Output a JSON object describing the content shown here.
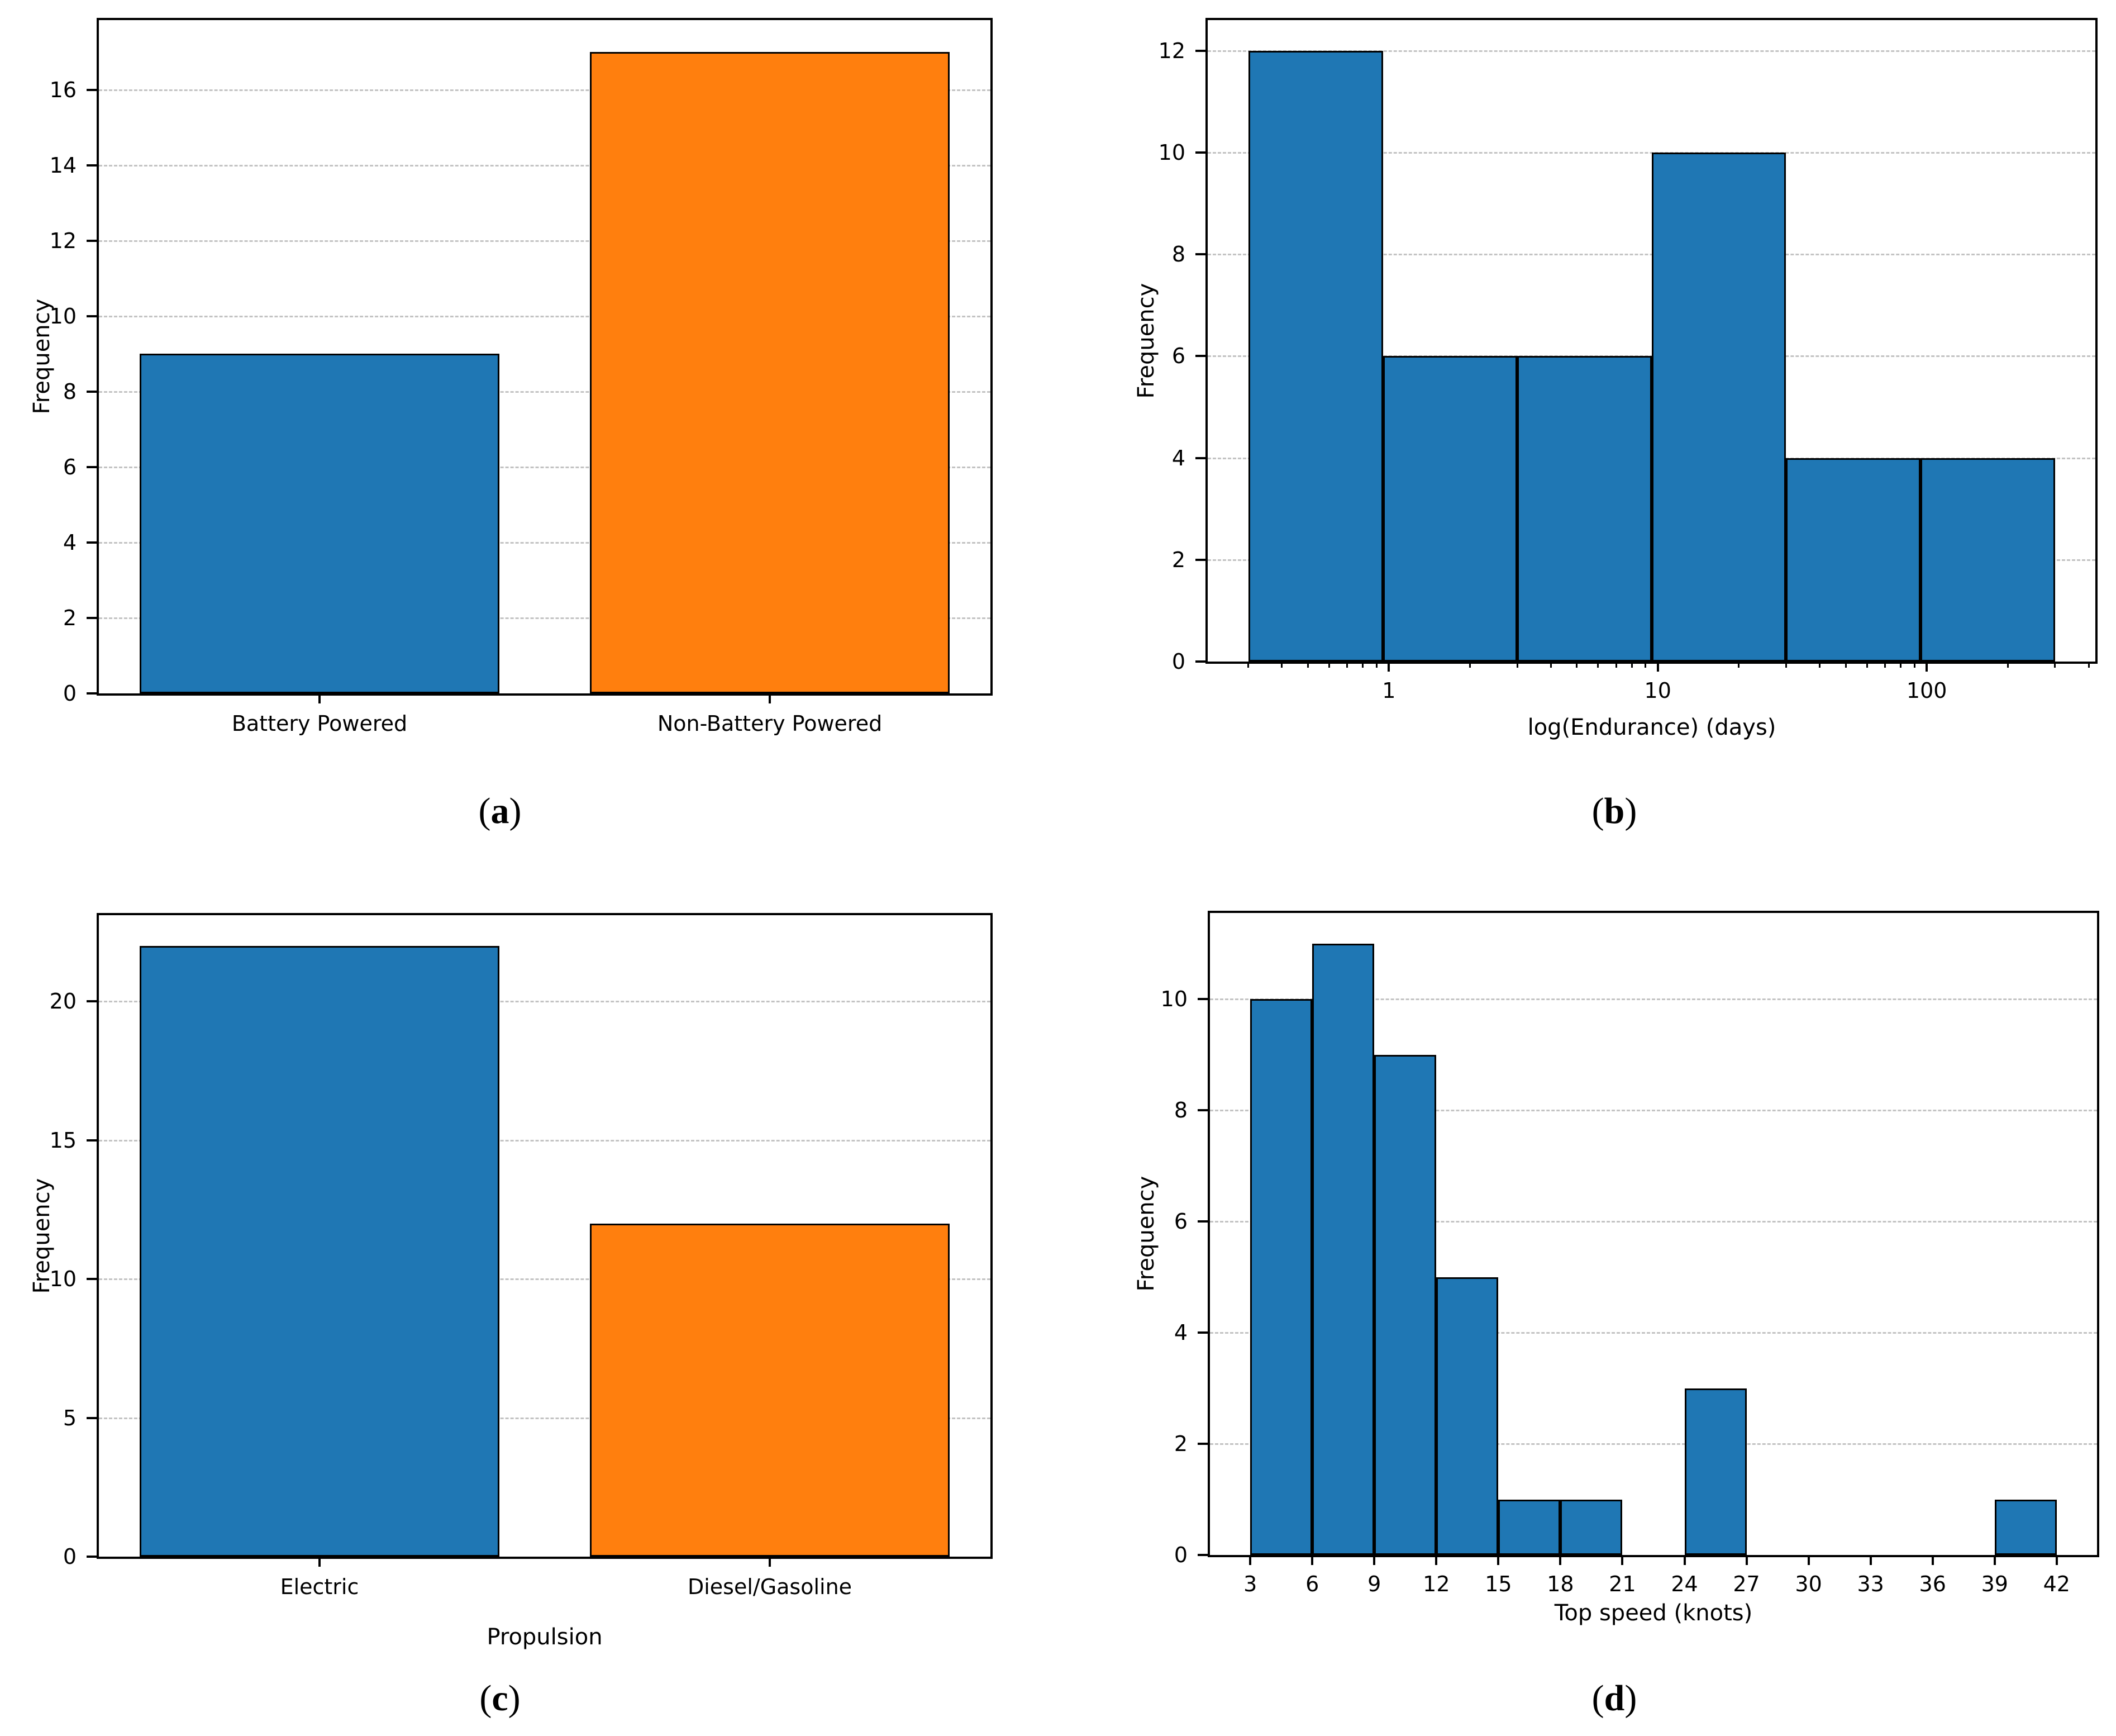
{
  "figure": {
    "background": "#ffffff",
    "grid_color": "#c3c3c3",
    "spine_color": "#000000",
    "bar_edge_color": "#000000",
    "accent_blue": "#1f77b4",
    "accent_orange": "#ff7f0e"
  },
  "chart_data": [
    {
      "id": "a",
      "type": "bar",
      "caption_open": "(",
      "caption_letter": "a",
      "caption_close": ")",
      "ylabel": "Frequency",
      "xlabel": "",
      "categories": [
        "Battery Powered",
        "Non-Battery Powered"
      ],
      "values": [
        9,
        17
      ],
      "bar_colors": [
        "#1f77b4",
        "#ff7f0e"
      ],
      "ylim": [
        0,
        17.85
      ],
      "yticks": [
        0,
        2,
        4,
        6,
        8,
        10,
        12,
        14,
        16
      ],
      "grid": "horizontal-dashed",
      "legend": "none"
    },
    {
      "id": "b",
      "type": "histogram-logx",
      "caption_open": "(",
      "caption_letter": "b",
      "caption_close": ")",
      "ylabel": "Frequency",
      "xlabel": "log(Endurance) (days)",
      "bin_edges": [
        0.3,
        0.95,
        3,
        9.5,
        30,
        95,
        300
      ],
      "values": [
        12,
        6,
        6,
        10,
        4,
        4
      ],
      "bar_color": "#1f77b4",
      "ylim": [
        0,
        12.6
      ],
      "yticks": [
        0,
        2,
        4,
        6,
        8,
        10,
        12
      ],
      "xlim": [
        0.212,
        423.6
      ],
      "xticks": [
        1,
        10,
        100
      ],
      "xticks_minor": [
        0.3,
        0.4,
        0.5,
        0.6,
        0.7,
        0.8,
        0.9,
        2,
        3,
        4,
        5,
        6,
        7,
        8,
        9,
        20,
        30,
        40,
        50,
        60,
        70,
        80,
        90,
        200,
        300,
        400
      ],
      "grid": "horizontal-dashed",
      "legend": "none"
    },
    {
      "id": "c",
      "type": "bar",
      "caption_open": "(",
      "caption_letter": "c",
      "caption_close": ")",
      "ylabel": "Frequency",
      "xlabel": "Propulsion",
      "categories": [
        "Electric",
        "Diesel/Gasoline"
      ],
      "values": [
        22,
        12
      ],
      "bar_colors": [
        "#1f77b4",
        "#ff7f0e"
      ],
      "ylim": [
        0,
        23.1
      ],
      "yticks": [
        0,
        5,
        10,
        15,
        20
      ],
      "grid": "horizontal-dashed",
      "legend": "none"
    },
    {
      "id": "d",
      "type": "histogram",
      "caption_open": "(",
      "caption_letter": "d",
      "caption_close": ")",
      "ylabel": "Frequency",
      "xlabel": "Top speed (knots)",
      "bin_start": 3,
      "bin_width": 3,
      "values": [
        10,
        11,
        9,
        5,
        1,
        1,
        0,
        3,
        0,
        0,
        0,
        0,
        1
      ],
      "bar_color": "#1f77b4",
      "ylim": [
        0,
        11.55
      ],
      "yticks": [
        0,
        2,
        4,
        6,
        8,
        10
      ],
      "xlim": [
        1.05,
        43.95
      ],
      "xticks": [
        3,
        6,
        9,
        12,
        15,
        18,
        21,
        24,
        27,
        30,
        33,
        36,
        39,
        42
      ],
      "grid": "horizontal-dashed",
      "legend": "none"
    }
  ]
}
